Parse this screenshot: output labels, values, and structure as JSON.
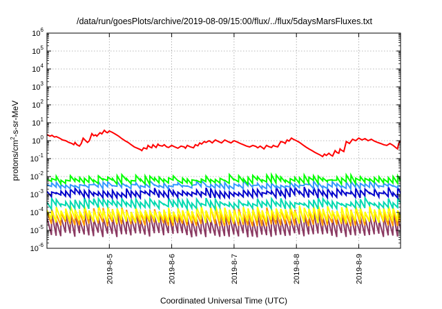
{
  "chart_data": {
    "type": "line",
    "title": "/data/run/goesPlots/archive/2019-08-09/15:00/flux/../flux/5daysMarsFluxes.txt",
    "xlabel": "Coordinated Universal Time (UTC)",
    "ylabel": {
      "base": "protons/cm",
      "sup": "2",
      "rest": "-s-sr-MeV"
    },
    "xlim": [
      4.0,
      9.67
    ],
    "ylim": [
      1e-06,
      1000000.0
    ],
    "yscale": "log",
    "grid": true,
    "legend": "none",
    "x_ticks": [
      {
        "v": 5,
        "label": "2019-8-5"
      },
      {
        "v": 6,
        "label": "2019-8-6"
      },
      {
        "v": 7,
        "label": "2019-8-7"
      },
      {
        "v": 8,
        "label": "2019-8-8"
      },
      {
        "v": 9,
        "label": "2019-8-9"
      }
    ],
    "y_ticks": [
      {
        "exp": -6,
        "label": "10",
        "sup": "-6"
      },
      {
        "exp": -5,
        "label": "10",
        "sup": "-5"
      },
      {
        "exp": -4,
        "label": "10",
        "sup": "-4"
      },
      {
        "exp": -3,
        "label": "10",
        "sup": "-3"
      },
      {
        "exp": -2,
        "label": "10",
        "sup": "-2"
      },
      {
        "exp": -1,
        "label": "10",
        "sup": "-1"
      },
      {
        "exp": 0,
        "label": "10",
        "sup": "0"
      },
      {
        "exp": 1,
        "label": "10",
        "sup": "1"
      },
      {
        "exp": 2,
        "label": "10",
        "sup": "2"
      },
      {
        "exp": 3,
        "label": "10",
        "sup": "3"
      },
      {
        "exp": 4,
        "label": "10",
        "sup": "4"
      },
      {
        "exp": 5,
        "label": "10",
        "sup": "5"
      },
      {
        "exp": 6,
        "label": "10",
        "sup": "6"
      }
    ],
    "series": [
      {
        "color": "#ff0000",
        "points": [
          [
            4.0,
            2.2
          ],
          [
            4.05,
            1.8
          ],
          [
            4.08,
            2.0
          ],
          [
            4.12,
            1.6
          ],
          [
            4.15,
            1.7
          ],
          [
            4.2,
            1.4
          ],
          [
            4.25,
            1.1
          ],
          [
            4.3,
            1.0
          ],
          [
            4.35,
            0.8
          ],
          [
            4.4,
            0.7
          ],
          [
            4.43,
            0.6
          ],
          [
            4.45,
            0.8
          ],
          [
            4.48,
            0.6
          ],
          [
            4.52,
            0.5
          ],
          [
            4.55,
            0.7
          ],
          [
            4.58,
            1.4
          ],
          [
            4.62,
            1.0
          ],
          [
            4.65,
            0.8
          ],
          [
            4.68,
            1.0
          ],
          [
            4.72,
            2.5
          ],
          [
            4.75,
            1.9
          ],
          [
            4.78,
            2.1
          ],
          [
            4.8,
            1.8
          ],
          [
            4.85,
            2.8
          ],
          [
            4.88,
            2.4
          ],
          [
            4.92,
            3.8
          ],
          [
            4.95,
            3.0
          ],
          [
            4.97,
            2.8
          ],
          [
            5.0,
            3.5
          ],
          [
            5.05,
            2.9
          ],
          [
            5.1,
            2.3
          ],
          [
            5.15,
            1.8
          ],
          [
            5.2,
            1.3
          ],
          [
            5.25,
            1.0
          ],
          [
            5.3,
            0.8
          ],
          [
            5.35,
            0.6
          ],
          [
            5.4,
            0.45
          ],
          [
            5.45,
            0.38
          ],
          [
            5.5,
            0.32
          ],
          [
            5.52,
            0.28
          ],
          [
            5.55,
            0.4
          ],
          [
            5.6,
            0.35
          ],
          [
            5.62,
            0.55
          ],
          [
            5.65,
            0.45
          ],
          [
            5.68,
            0.4
          ],
          [
            5.7,
            0.6
          ],
          [
            5.73,
            0.48
          ],
          [
            5.75,
            0.42
          ],
          [
            5.78,
            0.65
          ],
          [
            5.8,
            0.55
          ],
          [
            5.85,
            0.5
          ],
          [
            5.88,
            0.6
          ],
          [
            5.92,
            0.45
          ],
          [
            5.95,
            0.42
          ],
          [
            6.0,
            0.55
          ],
          [
            6.05,
            0.45
          ],
          [
            6.1,
            0.38
          ],
          [
            6.15,
            0.5
          ],
          [
            6.2,
            0.45
          ],
          [
            6.22,
            0.38
          ],
          [
            6.25,
            0.55
          ],
          [
            6.3,
            0.45
          ],
          [
            6.35,
            0.4
          ],
          [
            6.38,
            0.6
          ],
          [
            6.42,
            0.52
          ],
          [
            6.45,
            0.75
          ],
          [
            6.48,
            0.65
          ],
          [
            6.52,
            0.9
          ],
          [
            6.55,
            0.8
          ],
          [
            6.6,
            1.0
          ],
          [
            6.63,
            0.85
          ],
          [
            6.65,
            0.75
          ],
          [
            6.7,
            1.1
          ],
          [
            6.75,
            0.9
          ],
          [
            6.8,
            0.75
          ],
          [
            6.85,
            1.1
          ],
          [
            6.9,
            0.9
          ],
          [
            6.95,
            0.75
          ],
          [
            7.0,
            1.0
          ],
          [
            7.05,
            0.85
          ],
          [
            7.1,
            0.7
          ],
          [
            7.15,
            0.6
          ],
          [
            7.2,
            0.5
          ],
          [
            7.25,
            0.45
          ],
          [
            7.3,
            0.55
          ],
          [
            7.35,
            0.48
          ],
          [
            7.38,
            0.4
          ],
          [
            7.42,
            0.5
          ],
          [
            7.45,
            0.42
          ],
          [
            7.48,
            0.35
          ],
          [
            7.52,
            0.55
          ],
          [
            7.55,
            0.48
          ],
          [
            7.6,
            0.42
          ],
          [
            7.63,
            0.55
          ],
          [
            7.65,
            0.5
          ],
          [
            7.7,
            0.45
          ],
          [
            7.75,
            0.9
          ],
          [
            7.8,
            0.8
          ],
          [
            7.82,
            0.7
          ],
          [
            7.85,
            1.1
          ],
          [
            7.88,
            0.95
          ],
          [
            7.92,
            1.4
          ],
          [
            7.95,
            1.2
          ],
          [
            8.0,
            1.0
          ],
          [
            8.05,
            0.8
          ],
          [
            8.1,
            0.6
          ],
          [
            8.15,
            0.45
          ],
          [
            8.2,
            0.35
          ],
          [
            8.25,
            0.28
          ],
          [
            8.3,
            0.22
          ],
          [
            8.35,
            0.18
          ],
          [
            8.38,
            0.16
          ],
          [
            8.42,
            0.13
          ],
          [
            8.45,
            0.18
          ],
          [
            8.48,
            0.15
          ],
          [
            8.52,
            0.2
          ],
          [
            8.55,
            0.16
          ],
          [
            8.58,
            0.14
          ],
          [
            8.62,
            0.28
          ],
          [
            8.65,
            0.22
          ],
          [
            8.68,
            0.2
          ],
          [
            8.7,
            0.35
          ],
          [
            8.72,
            0.3
          ],
          [
            8.76,
            0.25
          ],
          [
            8.8,
            0.9
          ],
          [
            8.85,
            0.7
          ],
          [
            8.9,
            1.2
          ],
          [
            8.95,
            1.0
          ],
          [
            9.0,
            1.4
          ],
          [
            9.05,
            1.1
          ],
          [
            9.1,
            1.3
          ],
          [
            9.15,
            1.0
          ],
          [
            9.2,
            1.2
          ],
          [
            9.25,
            0.95
          ],
          [
            9.3,
            0.8
          ],
          [
            9.35,
            0.7
          ],
          [
            9.4,
            0.6
          ],
          [
            9.45,
            0.55
          ],
          [
            9.5,
            0.7
          ],
          [
            9.55,
            0.55
          ],
          [
            9.58,
            0.45
          ],
          [
            9.62,
            0.35
          ],
          [
            9.64,
            0.7
          ],
          [
            9.67,
            1.0
          ]
        ]
      },
      {
        "color": "#00ff00",
        "base": 0.004,
        "mult": 2.2,
        "jitter": 0.35,
        "seed": 11
      },
      {
        "color": "#3399ff",
        "base": 0.0022,
        "mult": 1.9,
        "jitter": 0.3,
        "seed": 23
      },
      {
        "color": "#0000cc",
        "base": 0.0007,
        "mult": 2.6,
        "jitter": 0.35,
        "seed": 37
      },
      {
        "color": "#00d9b0",
        "base": 0.00017,
        "mult": 2.6,
        "jitter": 0.35,
        "seed": 41
      },
      {
        "color": "#ffff00",
        "base": 2.8e-05,
        "mult": 6.0,
        "jitter": 0.4,
        "seed": 53
      },
      {
        "color": "#ff9900",
        "base": 1.8e-05,
        "mult": 7.0,
        "jitter": 0.4,
        "seed": 67
      },
      {
        "color": "#8b3a62",
        "base": 4.5e-06,
        "mult": 14.0,
        "jitter": 0.45,
        "seed": 79
      }
    ]
  }
}
